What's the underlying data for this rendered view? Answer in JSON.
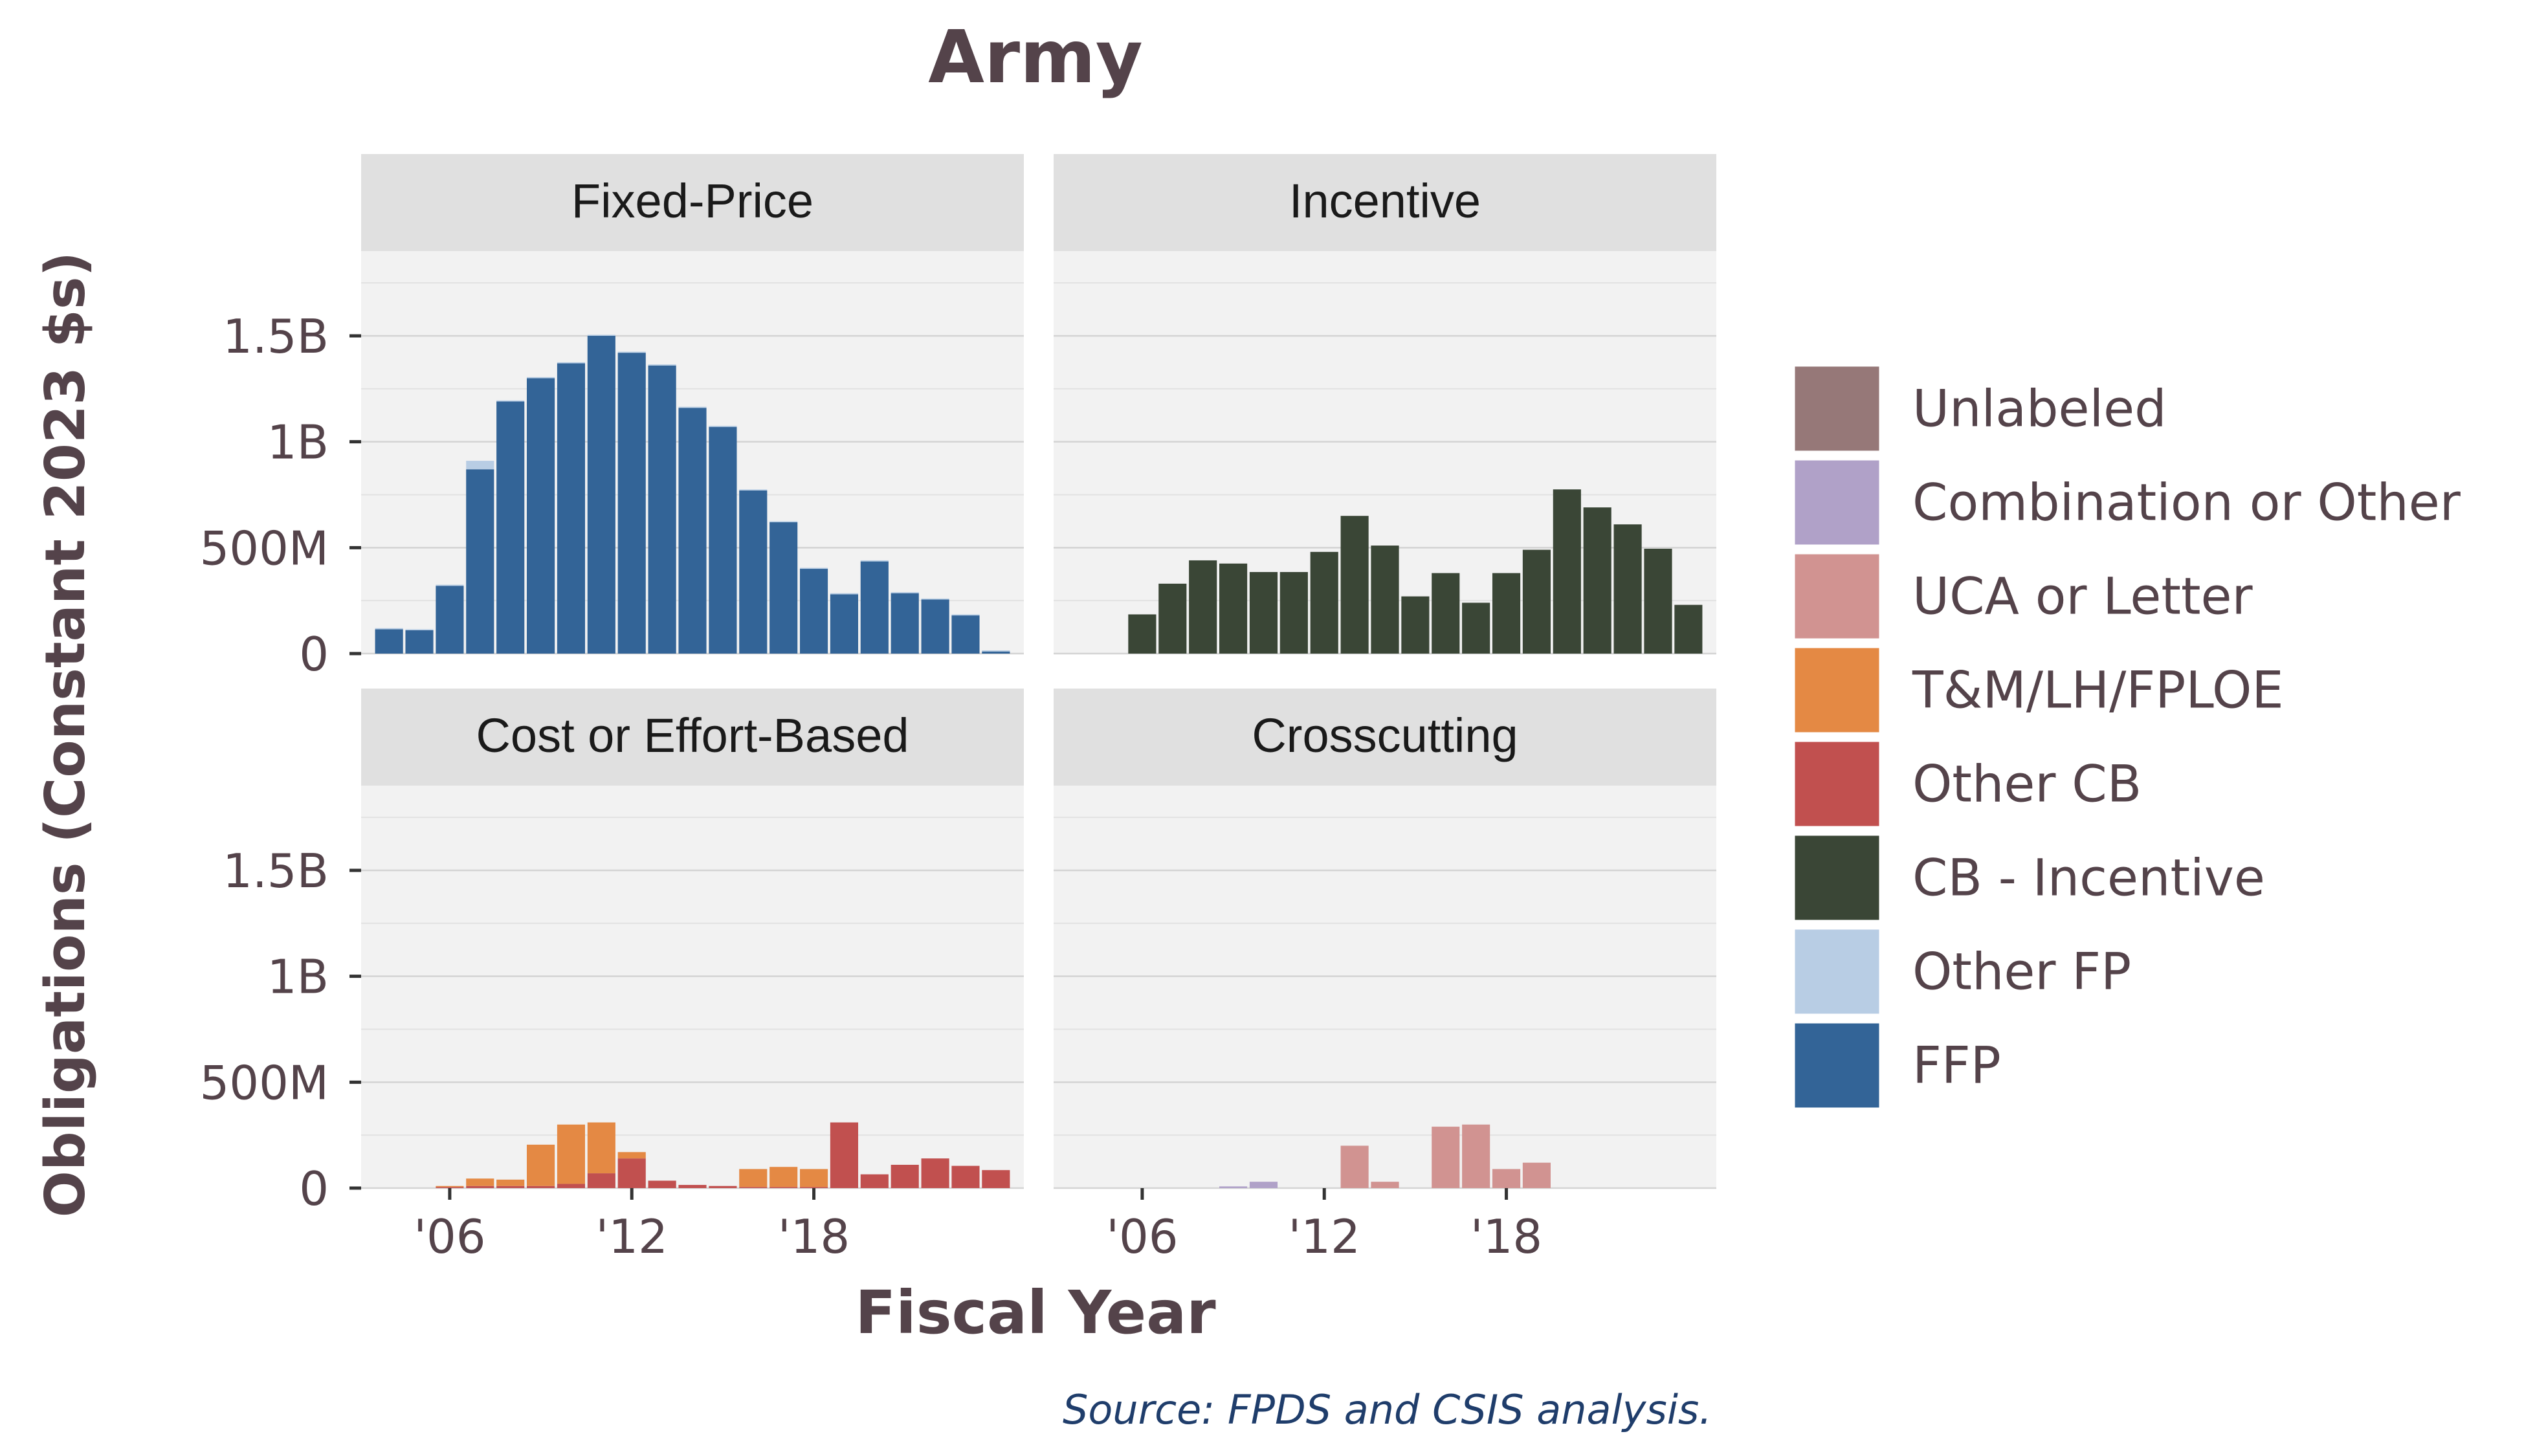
{
  "chart_data": {
    "type": "bar",
    "title": "Army",
    "xlabel": "Fiscal Year",
    "ylabel": "Obligations (Constant 2023 $s)",
    "caption": "Source: FPDS and CSIS analysis.",
    "x": [
      2004,
      2005,
      2006,
      2007,
      2008,
      2009,
      2010,
      2011,
      2012,
      2013,
      2014,
      2015,
      2016,
      2017,
      2018,
      2019,
      2020,
      2021,
      2022,
      2023,
      2024
    ],
    "x_tick_values": [
      2006,
      2012,
      2018
    ],
    "x_tick_labels": [
      "'06",
      "'12",
      "'18"
    ],
    "ylim": [
      0,
      1900000000
    ],
    "y_tick_values": [
      0,
      500000000,
      1000000000,
      1500000000
    ],
    "y_tick_labels": [
      "0",
      "500M",
      "1B",
      "1.5B"
    ],
    "grid": true,
    "stacked": true,
    "legend_position": "right",
    "colors": {
      "Unlabeled": "#967878",
      "Combination or Other": "#b0a1c8",
      "UCA or Letter": "#d19391",
      "T&M/LH/FPLOE": "#e48944",
      "Other CB": "#c1504f",
      "CB - Incentive": "#3a4636",
      "Other FP": "#b8cde4",
      "FFP": "#336497"
    },
    "legend": [
      "Unlabeled",
      "Combination or Other",
      "UCA or Letter",
      "T&M/LH/FPLOE",
      "Other CB",
      "CB - Incentive",
      "Other FP",
      "FFP"
    ],
    "panels": [
      {
        "name": "Fixed-Price",
        "series": [
          {
            "name": "FFP",
            "values": [
              115000000,
              110000000,
              320000000,
              870000000,
              1190000000,
              1300000000,
              1370000000,
              1500000000,
              1420000000,
              1360000000,
              1160000000,
              1070000000,
              770000000,
              620000000,
              400000000,
              280000000,
              435000000,
              285000000,
              255000000,
              180000000,
              10000000
            ]
          },
          {
            "name": "Other FP",
            "values": [
              5000000,
              5000000,
              5000000,
              40000000,
              5000000,
              5000000,
              5000000,
              5000000,
              5000000,
              5000000,
              5000000,
              5000000,
              5000000,
              5000000,
              5000000,
              5000000,
              5000000,
              5000000,
              5000000,
              5000000,
              5000000
            ]
          }
        ]
      },
      {
        "name": "Incentive",
        "series": [
          {
            "name": "CB - Incentive",
            "values": [
              0,
              0,
              185000000,
              330000000,
              440000000,
              425000000,
              385000000,
              385000000,
              480000000,
              650000000,
              510000000,
              270000000,
              380000000,
              240000000,
              380000000,
              490000000,
              775000000,
              690000000,
              610000000,
              495000000,
              230000000
            ]
          }
        ]
      },
      {
        "name": "Cost or Effort-Based",
        "series": [
          {
            "name": "Other CB",
            "values": [
              0,
              0,
              5000000,
              10000000,
              10000000,
              10000000,
              20000000,
              70000000,
              140000000,
              35000000,
              15000000,
              10000000,
              5000000,
              5000000,
              5000000,
              310000000,
              65000000,
              110000000,
              140000000,
              105000000,
              85000000
            ]
          },
          {
            "name": "T&M/LH/FPLOE",
            "values": [
              0,
              0,
              5000000,
              35000000,
              30000000,
              195000000,
              280000000,
              240000000,
              30000000,
              0,
              0,
              0,
              85000000,
              95000000,
              85000000,
              0,
              0,
              0,
              0,
              0,
              0
            ]
          }
        ]
      },
      {
        "name": "Crosscutting",
        "series": [
          {
            "name": "Combination or Other",
            "values": [
              0,
              0,
              0,
              0,
              0,
              8000000,
              30000000,
              0,
              0,
              0,
              0,
              0,
              0,
              0,
              0,
              0,
              0,
              0,
              0,
              0,
              0
            ]
          },
          {
            "name": "UCA or Letter",
            "values": [
              0,
              0,
              0,
              0,
              0,
              0,
              0,
              0,
              0,
              200000000,
              30000000,
              0,
              290000000,
              300000000,
              90000000,
              120000000,
              0,
              0,
              0,
              0,
              0
            ]
          }
        ]
      }
    ]
  }
}
